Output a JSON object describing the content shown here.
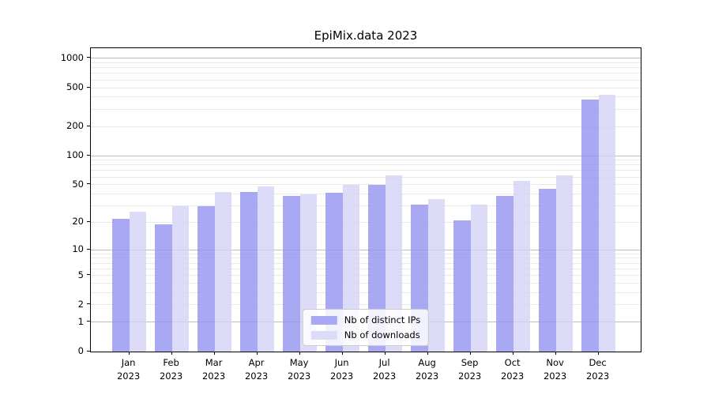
{
  "chart_data": {
    "type": "bar",
    "title": "EpiMix.data 2023",
    "categories": [
      "Jan",
      "Feb",
      "Mar",
      "Apr",
      "May",
      "Jun",
      "Jul",
      "Aug",
      "Sep",
      "Oct",
      "Nov",
      "Dec"
    ],
    "category_year": "2023",
    "series": [
      {
        "name": "Nb of distinct IPs",
        "color": "#a9a9f3",
        "values": [
          22,
          19,
          30,
          42,
          38,
          41,
          50,
          31,
          21,
          38,
          45,
          375
        ]
      },
      {
        "name": "Nb of downloads",
        "color": "#dcdcf9",
        "values": [
          26,
          30,
          42,
          48,
          40,
          50,
          62,
          35,
          31,
          55,
          62,
          425
        ]
      }
    ],
    "yscale": "symlog-ln(1+v)",
    "yticks": [
      1000,
      500,
      200,
      100,
      50,
      20,
      10,
      5,
      2,
      1,
      0
    ],
    "ylim": [
      0,
      1270
    ],
    "grid": {
      "major_values": [
        1,
        10,
        100,
        1000
      ],
      "minor_steps_per_decade": [
        2,
        3,
        4,
        5,
        6,
        7,
        8,
        9
      ],
      "major_color": "#bdbdbd",
      "minor_color": "#e9e9e9"
    },
    "axis_color": "#000000",
    "legend": {
      "position": "lower center"
    }
  }
}
